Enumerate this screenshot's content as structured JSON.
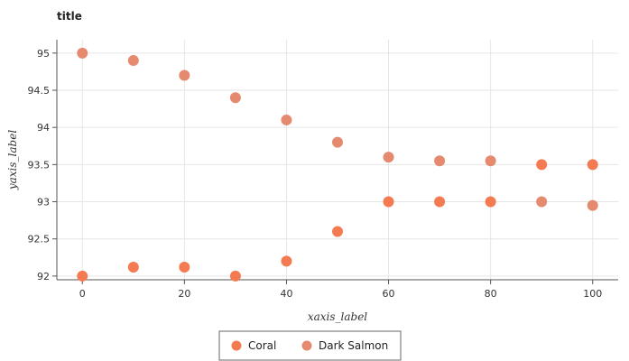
{
  "chart_data": {
    "type": "scatter",
    "title": "title",
    "xlabel": "xaxis_label",
    "ylabel": "yaxis_label",
    "xlim": [
      -5,
      105
    ],
    "ylim": [
      91.95,
      95.18
    ],
    "xticks": [
      0,
      20,
      40,
      60,
      80,
      100
    ],
    "yticks": [
      92,
      92.5,
      93,
      93.5,
      94,
      94.5,
      95
    ],
    "xtick_labels": [
      "0",
      "20",
      "40",
      "60",
      "80",
      "100"
    ],
    "ytick_labels": [
      "92",
      "92.5",
      "93",
      "93.5",
      "94",
      "94.5",
      "95"
    ],
    "grid": true,
    "legend_position": "bottom",
    "series": [
      {
        "name": "Coral",
        "color": "#f47a52",
        "x": [
          0,
          10,
          20,
          30,
          40,
          50,
          60,
          70,
          80,
          90,
          100
        ],
        "y": [
          92.0,
          92.12,
          92.12,
          92.0,
          92.2,
          92.6,
          93.0,
          93.0,
          93.0,
          93.5,
          93.5
        ]
      },
      {
        "name": "Dark Salmon",
        "color": "#e58a6f",
        "x": [
          0,
          10,
          20,
          30,
          40,
          50,
          60,
          70,
          80,
          90,
          100
        ],
        "y": [
          95.0,
          94.9,
          94.7,
          94.4,
          94.1,
          93.8,
          93.6,
          93.55,
          93.55,
          93.0,
          92.95
        ]
      }
    ]
  }
}
